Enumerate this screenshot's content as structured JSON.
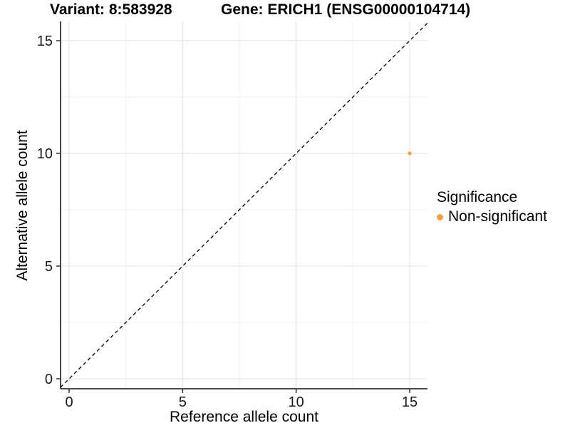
{
  "chart_data": {
    "type": "scatter",
    "titles": {
      "left": "Variant: 8:583928",
      "right": "Gene: ERICH1 (ENSG00000104714)"
    },
    "xlabel": "Reference allele count",
    "ylabel": "Alternative allele count",
    "xlim": [
      -0.38,
      15.78
    ],
    "ylim": [
      -0.44,
      15.85
    ],
    "xticks": [
      0,
      5,
      10,
      15
    ],
    "yticks": [
      0,
      5,
      10,
      15
    ],
    "minor_xticks": [
      2.5,
      7.5,
      12.5
    ],
    "minor_yticks": [
      2.5,
      7.5,
      12.5
    ],
    "grid": "major+minor",
    "identity_line": {
      "equation": "y = x",
      "style": "dashed",
      "color": "#000000"
    },
    "points": [
      {
        "x": 15,
        "y": 10,
        "series": "Non-significant"
      }
    ],
    "legend": {
      "title": "Significance",
      "position": "right",
      "entries": [
        {
          "label": "Non-significant",
          "color": "#F9A03C"
        }
      ]
    },
    "colors": {
      "point": "#F9A03C",
      "grid_major": "#E7E7E7",
      "grid_minor": "#F2F2F2",
      "axis_line": "#333333",
      "tick_label": "#1a1a1a"
    }
  }
}
